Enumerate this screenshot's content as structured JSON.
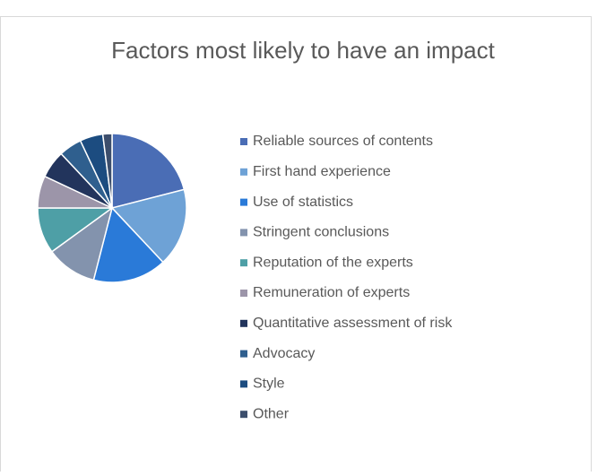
{
  "chart_data": {
    "type": "pie",
    "title": "Factors most likely to have an impact",
    "categories": [
      "Reliable sources of contents",
      "First hand experience",
      "Use of statistics",
      "Stringent conclusions",
      "Reputation of the experts",
      "Remuneration of experts",
      "Quantitative assessment of risk",
      "Advocacy",
      "Style",
      "Other"
    ],
    "values": [
      21,
      17,
      16,
      11,
      10,
      7,
      6,
      5,
      5,
      2
    ],
    "colors": [
      "#4a6db5",
      "#6ea2d6",
      "#2a7ad8",
      "#8393ad",
      "#4e9fa6",
      "#9c95a9",
      "#22345c",
      "#2f5f8e",
      "#1c4c80",
      "#3c4e6c"
    ],
    "legend": "right"
  }
}
